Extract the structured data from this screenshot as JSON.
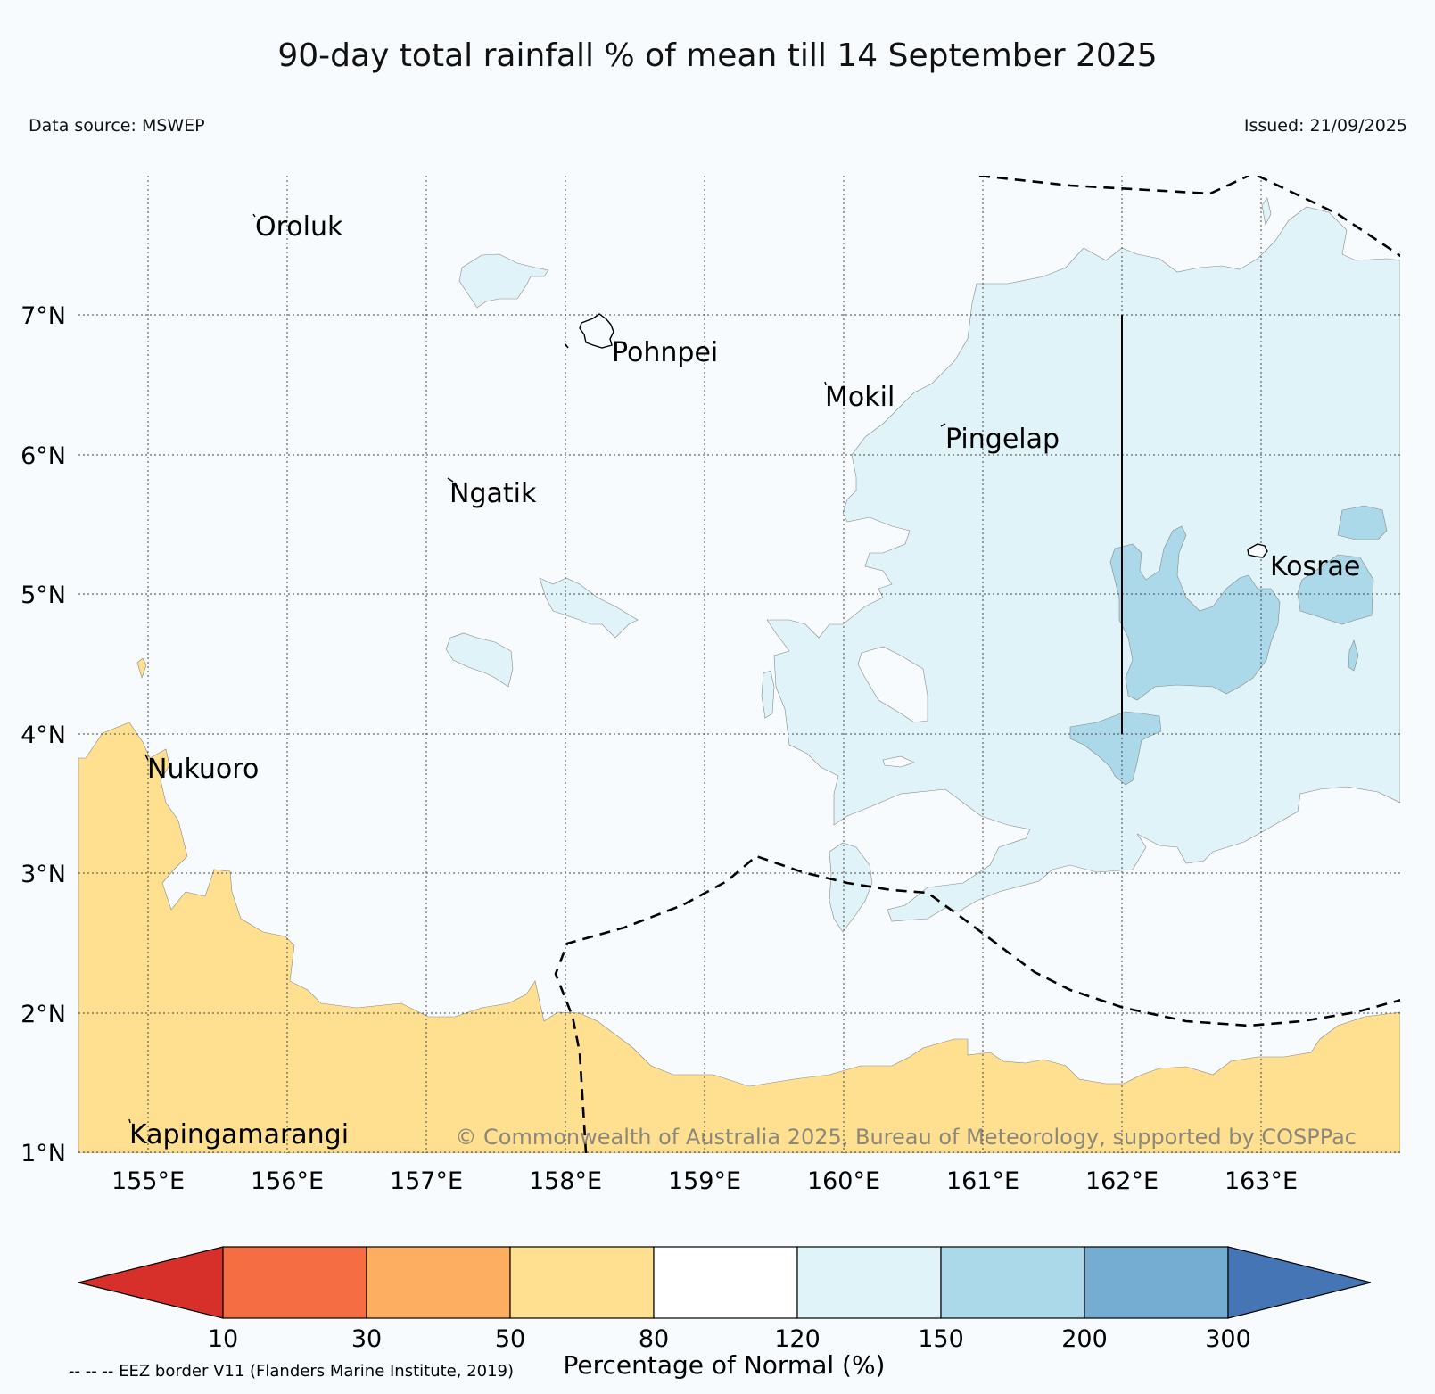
{
  "header": {
    "title": "90-day total rainfall % of mean till 14 September 2025",
    "data_source": "Data source: MSWEP",
    "issued": "Issued: 21/09/2025"
  },
  "map": {
    "lat_range": [
      1,
      8
    ],
    "lon_range": [
      154.5,
      164
    ],
    "lat_ticks": [
      {
        "value": 7,
        "label": "7°N"
      },
      {
        "value": 6,
        "label": "6°N"
      },
      {
        "value": 5,
        "label": "5°N"
      },
      {
        "value": 4,
        "label": "4°N"
      },
      {
        "value": 3,
        "label": "3°N"
      },
      {
        "value": 2,
        "label": "2°N"
      },
      {
        "value": 1,
        "label": "1°N"
      }
    ],
    "lon_ticks": [
      {
        "value": 155,
        "label": "155°E"
      },
      {
        "value": 156,
        "label": "156°E"
      },
      {
        "value": 157,
        "label": "157°E"
      },
      {
        "value": 158,
        "label": "158°E"
      },
      {
        "value": 159,
        "label": "159°E"
      },
      {
        "value": 160,
        "label": "160°E"
      },
      {
        "value": 161,
        "label": "161°E"
      },
      {
        "value": 162,
        "label": "162°E"
      },
      {
        "value": 163,
        "label": "163°E"
      }
    ],
    "places": [
      {
        "name": "Oroluk",
        "lon": 155.75,
        "lat": 7.6
      },
      {
        "name": "Pohnpei",
        "lon": 158.25,
        "lat": 6.87
      },
      {
        "name": "Mokil",
        "lon": 159.8,
        "lat": 6.55
      },
      {
        "name": "Pingelap",
        "lon": 160.7,
        "lat": 6.22
      },
      {
        "name": "Ngatik",
        "lon": 157.15,
        "lat": 5.8
      },
      {
        "name": "Kosrae",
        "lon": 163.0,
        "lat": 5.3
      },
      {
        "name": "Nukuoro",
        "lon": 154.95,
        "lat": 3.9
      },
      {
        "name": "Kapingamarangi",
        "lon": 154.8,
        "lat": 1.15
      }
    ],
    "copyright": "© Commonwealth of Australia 2025, Bureau of Meteorology, supported by COSPPac"
  },
  "legend": {
    "label": "Percentage of Normal (%)",
    "eez_note": "-- -- -- EEZ border V11 (Flanders Marine Institute, 2019)",
    "bins": [
      {
        "range": "<10",
        "color": "#d7302a"
      },
      {
        "range": "10-30",
        "color": "#f46d43"
      },
      {
        "range": "30-50",
        "color": "#fdae61"
      },
      {
        "range": "50-80",
        "color": "#fee090"
      },
      {
        "range": "80-120",
        "color": "#ffffff"
      },
      {
        "range": "120-150",
        "color": "#e0f3f8"
      },
      {
        "range": "150-200",
        "color": "#abd9e9"
      },
      {
        "range": "200-300",
        "color": "#74add1"
      },
      {
        "range": ">300",
        "color": "#4575b4"
      }
    ],
    "ticks": [
      "10",
      "30",
      "50",
      "80",
      "120",
      "150",
      "200",
      "300"
    ]
  },
  "colors": {
    "dry": "#fee090",
    "wet1": "#e0f3f8",
    "wet2": "#abd9e9",
    "background": "#f7fbfd"
  }
}
